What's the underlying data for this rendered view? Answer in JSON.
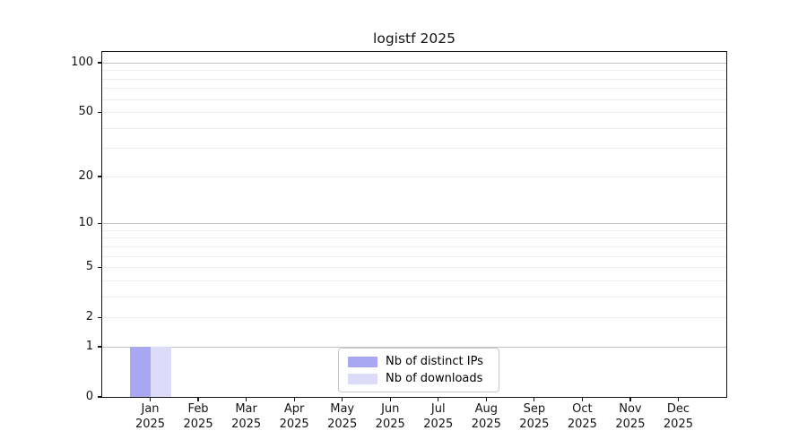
{
  "title": "logistf 2025",
  "chart_data": {
    "type": "bar",
    "title": "logistf 2025",
    "categories": [
      "Jan",
      "Feb",
      "Mar",
      "Apr",
      "May",
      "Jun",
      "Jul",
      "Aug",
      "Sep",
      "Oct",
      "Nov",
      "Dec"
    ],
    "year_label": "2025",
    "series": [
      {
        "name": "Nb of distinct IPs",
        "color": "#a8a8f2",
        "values": [
          1,
          0,
          0,
          0,
          0,
          0,
          0,
          0,
          0,
          0,
          0,
          0
        ]
      },
      {
        "name": "Nb of downloads",
        "color": "#dcdcf8",
        "values": [
          1,
          0,
          0,
          0,
          0,
          0,
          0,
          0,
          0,
          0,
          0,
          0
        ]
      }
    ],
    "yscale": "log1p",
    "yticks": [
      0,
      1,
      2,
      5,
      10,
      20,
      50,
      100
    ],
    "minor_gridlines": [
      2,
      3,
      4,
      5,
      6,
      7,
      8,
      9,
      20,
      30,
      40,
      50,
      60,
      70,
      80,
      90
    ],
    "major_gridlines": [
      1,
      10,
      100
    ],
    "ylim": [
      0,
      116
    ],
    "xlabel": "",
    "ylabel": "",
    "grid": true,
    "legend_position": "bottom-center",
    "colors": {
      "major_grid": "#c2c2c2",
      "minor_grid": "#ededed",
      "spine": "#151515",
      "text": "#141414",
      "background": "#ffffff"
    }
  }
}
